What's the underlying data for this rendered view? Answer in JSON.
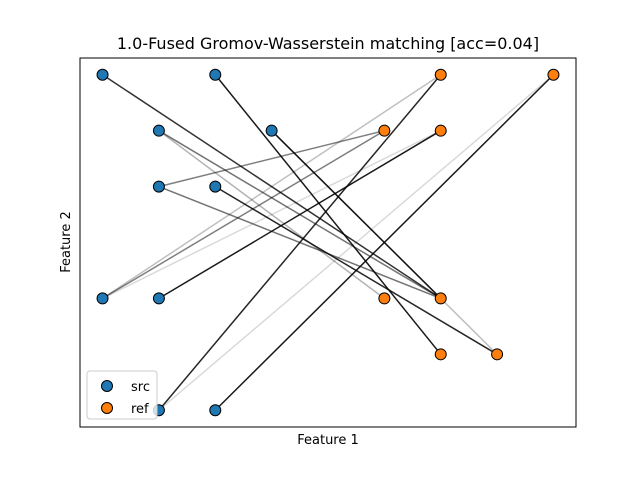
{
  "chart_data": {
    "type": "scatter",
    "title": "1.0-Fused Gromov-Wasserstein matching [acc=0.04]",
    "xlabel": "Feature 1",
    "ylabel": "Feature 2",
    "xlim": [
      0.6,
      9.4
    ],
    "ylim": [
      0.7,
      7.3
    ],
    "x_ticks_shown": false,
    "y_ticks_shown": false,
    "grid": false,
    "legend": {
      "position": "lower-left",
      "entries": [
        {
          "name": "src",
          "color": "#1f77b4"
        },
        {
          "name": "ref",
          "color": "#ff7f0e"
        }
      ]
    },
    "series": [
      {
        "name": "src",
        "color": "#1f77b4",
        "points": [
          [
            1,
            7
          ],
          [
            3,
            7
          ],
          [
            2,
            6
          ],
          [
            4,
            6
          ],
          [
            2,
            5
          ],
          [
            3,
            5
          ],
          [
            1,
            3
          ],
          [
            2,
            3
          ],
          [
            2,
            1
          ],
          [
            3,
            1
          ]
        ]
      },
      {
        "name": "ref",
        "color": "#ff7f0e",
        "points": [
          [
            7,
            7
          ],
          [
            9,
            7
          ],
          [
            6,
            6
          ],
          [
            7,
            6
          ],
          [
            6,
            3
          ],
          [
            7,
            3
          ],
          [
            7,
            2
          ],
          [
            8,
            2
          ]
        ]
      }
    ],
    "matching_lines": [
      {
        "from": [
          1,
          7
        ],
        "to": [
          7,
          3
        ],
        "alpha": 0.8
      },
      {
        "from": [
          3,
          7
        ],
        "to": [
          7,
          2
        ],
        "alpha": 0.9
      },
      {
        "from": [
          2,
          6
        ],
        "to": [
          7,
          3
        ],
        "alpha": 0.55
      },
      {
        "from": [
          2,
          6
        ],
        "to": [
          6,
          3
        ],
        "alpha": 0.3
      },
      {
        "from": [
          4,
          6
        ],
        "to": [
          7,
          3
        ],
        "alpha": 0.9
      },
      {
        "from": [
          4,
          6
        ],
        "to": [
          8,
          2
        ],
        "alpha": 0.25
      },
      {
        "from": [
          2,
          5
        ],
        "to": [
          6,
          6
        ],
        "alpha": 0.5
      },
      {
        "from": [
          2,
          5
        ],
        "to": [
          7,
          3
        ],
        "alpha": 0.55
      },
      {
        "from": [
          3,
          5
        ],
        "to": [
          8,
          2
        ],
        "alpha": 0.85
      },
      {
        "from": [
          1,
          3
        ],
        "to": [
          7,
          7
        ],
        "alpha": 0.25
      },
      {
        "from": [
          1,
          3
        ],
        "to": [
          6,
          6
        ],
        "alpha": 0.5
      },
      {
        "from": [
          2,
          3
        ],
        "to": [
          7,
          6
        ],
        "alpha": 0.9
      },
      {
        "from": [
          2,
          1
        ],
        "to": [
          7,
          7
        ],
        "alpha": 0.85
      },
      {
        "from": [
          2,
          1
        ],
        "to": [
          9,
          7
        ],
        "alpha": 0.15
      },
      {
        "from": [
          3,
          1
        ],
        "to": [
          9,
          7
        ],
        "alpha": 0.9
      },
      {
        "from": [
          1,
          3
        ],
        "to": [
          7,
          6
        ],
        "alpha": 0.15
      }
    ]
  }
}
